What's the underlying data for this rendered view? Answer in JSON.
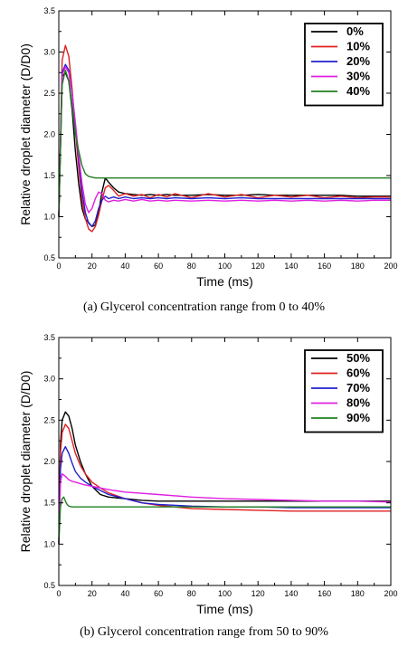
{
  "chart_data": [
    {
      "type": "line",
      "caption": "(a)  Glycerol concentration range from 0 to 40%",
      "xlabel": "Time (ms)",
      "ylabel": "Relative droplet diameter (D/D0)",
      "xlim": [
        0,
        200
      ],
      "ylim": [
        0.5,
        3.5
      ],
      "xticks": [
        "0",
        "20",
        "40",
        "60",
        "80",
        "100",
        "120",
        "140",
        "160",
        "180",
        "200"
      ],
      "yticks": [
        "0.5",
        "1.0",
        "1.5",
        "2.0",
        "2.5",
        "3.0",
        "3.5"
      ],
      "grid": false,
      "legend_position": "top-right",
      "series": [
        {
          "name": "0%",
          "color": "#000000",
          "x": [
            0,
            2,
            4,
            6,
            8,
            10,
            12,
            14,
            16,
            18,
            20,
            22,
            24,
            26,
            28,
            30,
            33,
            36,
            40,
            45,
            50,
            55,
            60,
            65,
            70,
            80,
            90,
            100,
            110,
            120,
            130,
            140,
            150,
            160,
            170,
            180,
            190,
            200
          ],
          "y": [
            1.0,
            2.7,
            2.75,
            2.65,
            2.3,
            1.8,
            1.4,
            1.1,
            0.97,
            0.93,
            0.88,
            0.9,
            1.05,
            1.3,
            1.47,
            1.42,
            1.35,
            1.3,
            1.28,
            1.27,
            1.26,
            1.27,
            1.26,
            1.27,
            1.26,
            1.26,
            1.27,
            1.26,
            1.26,
            1.27,
            1.26,
            1.26,
            1.26,
            1.26,
            1.26,
            1.25,
            1.25,
            1.25
          ]
        },
        {
          "name": "10%",
          "color": "#e02020",
          "x": [
            0,
            2,
            4,
            6,
            8,
            10,
            12,
            14,
            16,
            18,
            20,
            22,
            24,
            26,
            28,
            30,
            33,
            36,
            40,
            45,
            50,
            55,
            60,
            65,
            70,
            80,
            90,
            100,
            110,
            120,
            130,
            140,
            150,
            160,
            170,
            180,
            190,
            200
          ],
          "y": [
            1.0,
            2.9,
            3.08,
            2.95,
            2.55,
            2.05,
            1.6,
            1.2,
            0.98,
            0.85,
            0.82,
            0.88,
            1.02,
            1.2,
            1.35,
            1.38,
            1.32,
            1.25,
            1.28,
            1.25,
            1.27,
            1.23,
            1.27,
            1.24,
            1.28,
            1.23,
            1.28,
            1.24,
            1.27,
            1.23,
            1.26,
            1.24,
            1.26,
            1.23,
            1.25,
            1.23,
            1.24,
            1.24
          ]
        },
        {
          "name": "20%",
          "color": "#2020d0",
          "x": [
            0,
            2,
            4,
            6,
            8,
            10,
            12,
            14,
            16,
            18,
            20,
            22,
            24,
            26,
            28,
            30,
            33,
            36,
            40,
            45,
            50,
            55,
            60,
            65,
            70,
            80,
            90,
            100,
            110,
            120,
            130,
            140,
            150,
            160,
            170,
            180,
            190,
            200
          ],
          "y": [
            1.0,
            2.75,
            2.85,
            2.78,
            2.5,
            2.1,
            1.7,
            1.3,
            1.05,
            0.92,
            0.88,
            0.95,
            1.1,
            1.2,
            1.25,
            1.22,
            1.24,
            1.22,
            1.24,
            1.22,
            1.23,
            1.22,
            1.23,
            1.22,
            1.23,
            1.22,
            1.23,
            1.22,
            1.23,
            1.22,
            1.22,
            1.22,
            1.22,
            1.22,
            1.22,
            1.22,
            1.22,
            1.22
          ]
        },
        {
          "name": "30%",
          "color": "#e020e0",
          "x": [
            0,
            2,
            4,
            6,
            8,
            10,
            12,
            14,
            16,
            18,
            20,
            22,
            24,
            26,
            28,
            30,
            33,
            36,
            40,
            45,
            50,
            55,
            60,
            65,
            70,
            80,
            90,
            100,
            110,
            120,
            130,
            140,
            150,
            160,
            170,
            180,
            190,
            200
          ],
          "y": [
            1.0,
            2.72,
            2.82,
            2.75,
            2.5,
            2.15,
            1.75,
            1.4,
            1.15,
            1.05,
            1.1,
            1.22,
            1.3,
            1.28,
            1.2,
            1.18,
            1.2,
            1.19,
            1.21,
            1.19,
            1.21,
            1.19,
            1.2,
            1.19,
            1.2,
            1.19,
            1.2,
            1.19,
            1.2,
            1.19,
            1.2,
            1.19,
            1.2,
            1.19,
            1.2,
            1.19,
            1.2,
            1.2
          ]
        },
        {
          "name": "40%",
          "color": "#208020",
          "x": [
            0,
            2,
            4,
            6,
            8,
            10,
            12,
            14,
            16,
            18,
            20,
            22,
            24,
            26,
            28,
            30,
            40,
            50,
            60,
            70,
            80,
            100,
            120,
            140,
            160,
            180,
            200
          ],
          "y": [
            1.0,
            2.6,
            2.78,
            2.65,
            2.35,
            2.0,
            1.8,
            1.62,
            1.52,
            1.49,
            1.48,
            1.47,
            1.47,
            1.47,
            1.47,
            1.47,
            1.47,
            1.47,
            1.47,
            1.47,
            1.47,
            1.47,
            1.47,
            1.47,
            1.47,
            1.47,
            1.47
          ]
        }
      ]
    },
    {
      "type": "line",
      "caption": "(b) Glycerol concentration range from 50 to 90%",
      "xlabel": "Time (ms)",
      "ylabel": "Relative droplet diameter (D/D0)",
      "xlim": [
        0,
        200
      ],
      "ylim": [
        0.5,
        3.5
      ],
      "xticks": [
        "0",
        "20",
        "40",
        "60",
        "80",
        "100",
        "120",
        "140",
        "160",
        "180",
        "200"
      ],
      "yticks": [
        "0.5",
        "1.0",
        "1.5",
        "2.0",
        "2.5",
        "3.0",
        "3.5"
      ],
      "grid": false,
      "legend_position": "top-right",
      "series": [
        {
          "name": "50%",
          "color": "#000000",
          "x": [
            0,
            1,
            2,
            4,
            6,
            8,
            10,
            13,
            16,
            20,
            25,
            30,
            40,
            50,
            60,
            80,
            100,
            120,
            140,
            160,
            180,
            200
          ],
          "y": [
            1.0,
            2.2,
            2.5,
            2.6,
            2.55,
            2.4,
            2.2,
            2.0,
            1.85,
            1.7,
            1.6,
            1.57,
            1.55,
            1.53,
            1.52,
            1.52,
            1.52,
            1.52,
            1.52,
            1.52,
            1.52,
            1.52
          ]
        },
        {
          "name": "60%",
          "color": "#e02020",
          "x": [
            0,
            1,
            2,
            4,
            6,
            8,
            10,
            13,
            16,
            20,
            25,
            30,
            40,
            50,
            60,
            80,
            100,
            120,
            140,
            160,
            180,
            200
          ],
          "y": [
            1.0,
            2.1,
            2.35,
            2.45,
            2.4,
            2.25,
            2.1,
            1.95,
            1.85,
            1.75,
            1.68,
            1.62,
            1.55,
            1.5,
            1.47,
            1.43,
            1.42,
            1.41,
            1.4,
            1.4,
            1.4,
            1.4
          ]
        },
        {
          "name": "70%",
          "color": "#2020d0",
          "x": [
            0,
            1,
            2,
            4,
            6,
            8,
            10,
            13,
            16,
            20,
            25,
            30,
            40,
            50,
            60,
            80,
            100,
            120,
            140,
            160,
            180,
            200
          ],
          "y": [
            1.0,
            1.9,
            2.1,
            2.18,
            2.1,
            1.98,
            1.88,
            1.8,
            1.75,
            1.7,
            1.65,
            1.6,
            1.55,
            1.5,
            1.48,
            1.46,
            1.45,
            1.45,
            1.44,
            1.44,
            1.44,
            1.44
          ]
        },
        {
          "name": "80%",
          "color": "#e020e0",
          "x": [
            0,
            1,
            2,
            4,
            6,
            8,
            10,
            15,
            20,
            30,
            40,
            60,
            80,
            100,
            120,
            140,
            160,
            180,
            200
          ],
          "y": [
            1.0,
            1.75,
            1.85,
            1.82,
            1.78,
            1.76,
            1.75,
            1.72,
            1.7,
            1.66,
            1.63,
            1.6,
            1.57,
            1.55,
            1.54,
            1.53,
            1.52,
            1.52,
            1.51
          ]
        },
        {
          "name": "90%",
          "color": "#208020",
          "x": [
            0,
            1,
            2,
            3,
            4,
            5,
            6,
            8,
            10,
            20,
            40,
            60,
            80,
            100,
            120,
            140,
            160,
            180,
            200
          ],
          "y": [
            1.0,
            1.45,
            1.55,
            1.57,
            1.52,
            1.48,
            1.46,
            1.45,
            1.45,
            1.45,
            1.45,
            1.45,
            1.45,
            1.45,
            1.45,
            1.45,
            1.45,
            1.45,
            1.45
          ]
        }
      ]
    }
  ]
}
